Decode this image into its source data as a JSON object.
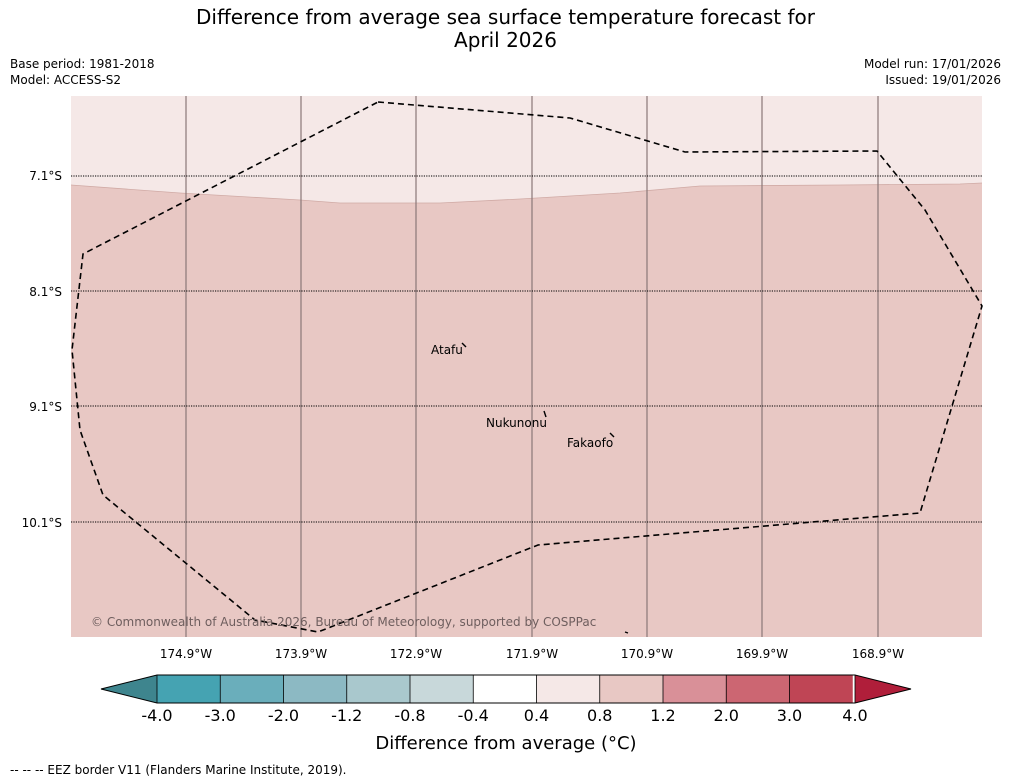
{
  "title_line1": "Difference from average sea surface temperature forecast for",
  "title_line2": "April 2026",
  "base_period": "Base period: 1981-2018",
  "model": "Model: ACCESS-S2",
  "model_run": "Model run: 17/01/2026",
  "issued": "Issued: 19/01/2026",
  "map": {
    "lat_labels": [
      "7.1°S",
      "8.1°S",
      "9.1°S",
      "10.1°S"
    ],
    "lon_labels": [
      "174.9°W",
      "173.9°W",
      "172.9°W",
      "171.9°W",
      "170.9°W",
      "169.9°W",
      "168.9°W"
    ],
    "places": [
      "Atafu",
      "Nukunonu",
      "Fakaofo"
    ],
    "copyright": "© Commonwealth of Australia 2026, Bureau of Meteorology, supported by COSPPac",
    "colors": {
      "band_0_4_to_0_8": "#f5e8e7",
      "band_0_8_to_1_2": "#e8c8c4",
      "eez": "#000000"
    }
  },
  "colorbar": {
    "ticks": [
      "-4.0",
      "-3.0",
      "-2.0",
      "-1.2",
      "-0.8",
      "-0.4",
      "0.4",
      "0.8",
      "1.2",
      "2.0",
      "3.0",
      "4.0"
    ],
    "colors": [
      "#3e858e",
      "#45a3b2",
      "#6aaebb",
      "#8cb9c3",
      "#a9c8cd",
      "#c8d8da",
      "#ffffff",
      "#f5e8e7",
      "#e8c8c4",
      "#d99098",
      "#cc6672",
      "#bf4555",
      "#b01e3a"
    ],
    "label": "Difference from average (°C)"
  },
  "footer": "--  --  -- EEZ border V11 (Flanders Marine Institute, 2019)."
}
